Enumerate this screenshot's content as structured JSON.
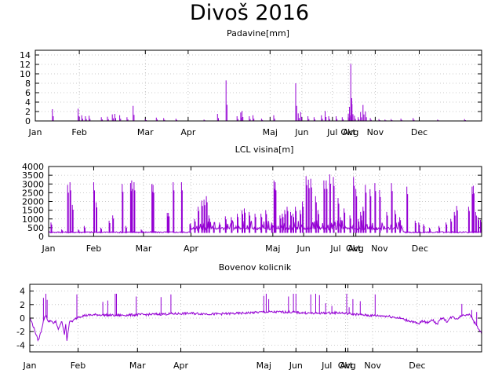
{
  "title": "Divoš 2016",
  "chart_data": [
    {
      "type": "line",
      "title": "Padavine[mm]",
      "ylim": [
        0,
        15
      ],
      "yticks": [
        0,
        2,
        4,
        6,
        8,
        10,
        12,
        14
      ],
      "xlim": [
        1,
        366
      ],
      "grid": true,
      "month_ticks": [
        {
          "label": "Jan",
          "day": 1
        },
        {
          "label": "Feb",
          "day": 37
        },
        {
          "label": "Mar",
          "day": 91
        },
        {
          "label": "Apr",
          "day": 126
        },
        {
          "label": "Maj",
          "day": 193
        },
        {
          "label": "Jun",
          "day": 219
        },
        {
          "label": "Jul",
          "day": 244
        },
        {
          "label": "Okt",
          "day": 257
        },
        {
          "label": "Avg",
          "day": 259
        },
        {
          "label": "Nov",
          "day": 279
        },
        {
          "label": "Dec",
          "day": 315
        }
      ],
      "peaks": [
        [
          15,
          2.5
        ],
        [
          36,
          2.6
        ],
        [
          39,
          1.2
        ],
        [
          42,
          1.0
        ],
        [
          45,
          1.1
        ],
        [
          55,
          0.8
        ],
        [
          60,
          0.9
        ],
        [
          64,
          1.4
        ],
        [
          66,
          1.5
        ],
        [
          70,
          1.2
        ],
        [
          76,
          0.8
        ],
        [
          81,
          3.2
        ],
        [
          91,
          0.4
        ],
        [
          100,
          0.7
        ],
        [
          106,
          0.6
        ],
        [
          116,
          0.5
        ],
        [
          139,
          0.3
        ],
        [
          150,
          1.5
        ],
        [
          157,
          8.6
        ],
        [
          166,
          1.0
        ],
        [
          169,
          1.8
        ],
        [
          170,
          2.1
        ],
        [
          176,
          1.0
        ],
        [
          179,
          1.2
        ],
        [
          186,
          0.5
        ],
        [
          196,
          1.2
        ],
        [
          214,
          8.0
        ],
        [
          216,
          1.6
        ],
        [
          218,
          1.9
        ],
        [
          224,
          1.0
        ],
        [
          229,
          0.8
        ],
        [
          235,
          1.2
        ],
        [
          238,
          2.1
        ],
        [
          241,
          1.0
        ],
        [
          247,
          1.0
        ],
        [
          252,
          0.8
        ],
        [
          257,
          1.5
        ],
        [
          258,
          3.0
        ],
        [
          259,
          12.1
        ],
        [
          260,
          3.6
        ],
        [
          262,
          1.1
        ],
        [
          265,
          0.8
        ],
        [
          267,
          1.9
        ],
        [
          269,
          3.4
        ],
        [
          271,
          2.0
        ],
        [
          275,
          0.6
        ],
        [
          282,
          0.4
        ],
        [
          287,
          0.3
        ],
        [
          292,
          0.4
        ],
        [
          300,
          0.5
        ],
        [
          310,
          0.6
        ],
        [
          330,
          0.3
        ],
        [
          352,
          0.4
        ]
      ]
    },
    {
      "type": "line",
      "title": "LCL visina[m]",
      "ylim": [
        0,
        4000
      ],
      "yticks": [
        0,
        500,
        1000,
        1500,
        2000,
        2500,
        3000,
        3500,
        4000
      ],
      "xlim": [
        1,
        366
      ],
      "grid": true,
      "baseline": 200,
      "month_ticks": [
        {
          "label": "Jan",
          "day": 1
        },
        {
          "label": "Feb",
          "day": 39
        },
        {
          "label": "Mar",
          "day": 81
        },
        {
          "label": "Apr",
          "day": 121
        },
        {
          "label": "Maj",
          "day": 190
        },
        {
          "label": "Jun",
          "day": 216
        },
        {
          "label": "Jul",
          "day": 243
        },
        {
          "label": "Okt",
          "day": 258
        },
        {
          "label": "Avg",
          "day": 260
        },
        {
          "label": "Nov",
          "day": 280
        },
        {
          "label": "Dec",
          "day": 314
        }
      ],
      "peaks": [
        [
          3,
          800
        ],
        [
          12,
          400
        ],
        [
          17,
          2950
        ],
        [
          19,
          3100
        ],
        [
          21,
          1800
        ],
        [
          26,
          400
        ],
        [
          31,
          600
        ],
        [
          39,
          3100
        ],
        [
          41,
          1950
        ],
        [
          45,
          500
        ],
        [
          52,
          900
        ],
        [
          55,
          1200
        ],
        [
          63,
          3000
        ],
        [
          66,
          600
        ],
        [
          70,
          3050
        ],
        [
          71,
          3200
        ],
        [
          73,
          3100
        ],
        [
          79,
          400
        ],
        [
          88,
          3000
        ],
        [
          89,
          2950
        ],
        [
          101,
          1350
        ],
        [
          102,
          1350
        ],
        [
          106,
          3100
        ],
        [
          113,
          3100
        ],
        [
          120,
          700
        ],
        [
          124,
          1000
        ],
        [
          127,
          1700
        ],
        [
          130,
          2050
        ],
        [
          132,
          2100
        ],
        [
          134,
          2300
        ],
        [
          136,
          1200
        ],
        [
          140,
          600
        ],
        [
          145,
          800
        ],
        [
          150,
          1150
        ],
        [
          155,
          1100
        ],
        [
          160,
          1300
        ],
        [
          164,
          1500
        ],
        [
          166,
          1600
        ],
        [
          170,
          1400
        ],
        [
          175,
          1300
        ],
        [
          180,
          1300
        ],
        [
          184,
          1500
        ],
        [
          189,
          800
        ],
        [
          191,
          3200
        ],
        [
          192,
          3100
        ],
        [
          196,
          1200
        ],
        [
          198,
          1300
        ],
        [
          200,
          1500
        ],
        [
          202,
          1700
        ],
        [
          205,
          1400
        ],
        [
          207,
          1300
        ],
        [
          209,
          1700
        ],
        [
          213,
          1500
        ],
        [
          215,
          2000
        ],
        [
          218,
          3450
        ],
        [
          220,
          3250
        ],
        [
          222,
          3300
        ],
        [
          226,
          2300
        ],
        [
          228,
          1500
        ],
        [
          233,
          3200
        ],
        [
          235,
          3200
        ],
        [
          238,
          3550
        ],
        [
          241,
          3400
        ],
        [
          245,
          2200
        ],
        [
          247,
          1100
        ],
        [
          250,
          1600
        ],
        [
          255,
          1200
        ],
        [
          258,
          3400
        ],
        [
          260,
          2700
        ],
        [
          262,
          1000
        ],
        [
          264,
          1400
        ],
        [
          266,
          1700
        ],
        [
          268,
          2950
        ],
        [
          272,
          2700
        ],
        [
          276,
          3050
        ],
        [
          280,
          2650
        ],
        [
          286,
          1400
        ],
        [
          290,
          3050
        ],
        [
          293,
          1500
        ],
        [
          297,
          1100
        ],
        [
          303,
          2850
        ],
        [
          310,
          900
        ],
        [
          313,
          800
        ],
        [
          317,
          700
        ],
        [
          322,
          500
        ],
        [
          330,
          600
        ],
        [
          336,
          800
        ],
        [
          340,
          1000
        ],
        [
          343,
          1400
        ],
        [
          345,
          1750
        ],
        [
          355,
          1700
        ],
        [
          358,
          2850
        ],
        [
          359,
          2900
        ],
        [
          361,
          1400
        ],
        [
          363,
          1100
        ],
        [
          365,
          950
        ]
      ]
    },
    {
      "type": "line",
      "title": "Bovenov kolicnik",
      "ylim": [
        -5,
        5
      ],
      "yticks": [
        -4,
        -2,
        0,
        2,
        4
      ],
      "xlim": [
        1,
        366
      ],
      "grid": true,
      "month_ticks": [
        {
          "label": "Jan",
          "day": 1
        },
        {
          "label": "Feb",
          "day": 40
        },
        {
          "label": "Mar",
          "day": 88
        },
        {
          "label": "Apr",
          "day": 123
        },
        {
          "label": "Maj",
          "day": 190
        },
        {
          "label": "Jun",
          "day": 216
        },
        {
          "label": "Jul",
          "day": 241
        },
        {
          "label": "Okt",
          "day": 256
        },
        {
          "label": "Avg",
          "day": 258
        },
        {
          "label": "Nov",
          "day": 278
        },
        {
          "label": "Dec",
          "day": 314
        }
      ],
      "profile": [
        [
          1,
          0.0
        ],
        [
          3,
          -0.8
        ],
        [
          5,
          -1.8
        ],
        [
          7,
          -3.0
        ],
        [
          8,
          -3.3
        ],
        [
          10,
          -2.0
        ],
        [
          12,
          -0.4
        ],
        [
          14,
          0.5
        ],
        [
          16,
          -0.6
        ],
        [
          18,
          -0.3
        ],
        [
          20,
          -0.9
        ],
        [
          22,
          -0.4
        ],
        [
          24,
          -1.8
        ],
        [
          25,
          -1.2
        ],
        [
          27,
          -0.5
        ],
        [
          29,
          -2.4
        ],
        [
          30,
          -1.0
        ],
        [
          31,
          -3.2
        ],
        [
          33,
          -0.6
        ],
        [
          36,
          -0.4
        ],
        [
          40,
          0.2
        ],
        [
          46,
          0.4
        ],
        [
          55,
          0.5
        ],
        [
          70,
          0.4
        ],
        [
          90,
          0.5
        ],
        [
          110,
          0.6
        ],
        [
          130,
          0.7
        ],
        [
          150,
          0.6
        ],
        [
          170,
          0.7
        ],
        [
          190,
          0.9
        ],
        [
          210,
          0.9
        ],
        [
          230,
          0.7
        ],
        [
          250,
          0.8
        ],
        [
          262,
          0.6
        ],
        [
          275,
          0.4
        ],
        [
          290,
          0.3
        ],
        [
          300,
          0.0
        ],
        [
          305,
          -0.3
        ],
        [
          310,
          -0.5
        ],
        [
          315,
          -0.9
        ],
        [
          318,
          -0.4
        ],
        [
          322,
          -0.7
        ],
        [
          326,
          -0.2
        ],
        [
          330,
          -0.9
        ],
        [
          334,
          0.1
        ],
        [
          338,
          -0.5
        ],
        [
          342,
          0.2
        ],
        [
          346,
          -0.1
        ],
        [
          350,
          0.4
        ],
        [
          355,
          0.6
        ],
        [
          358,
          0.2
        ],
        [
          360,
          -0.6
        ],
        [
          362,
          -1.1
        ],
        [
          364,
          -1.7
        ],
        [
          366,
          -2.3
        ]
      ],
      "peaks": [
        [
          12,
          3.0
        ],
        [
          14,
          3.6
        ],
        [
          15,
          2.7
        ],
        [
          39,
          3.5
        ],
        [
          60,
          2.4
        ],
        [
          64,
          2.6
        ],
        [
          70,
          3.6
        ],
        [
          71,
          3.6
        ],
        [
          87,
          3.2
        ],
        [
          107,
          3.1
        ],
        [
          115,
          3.5
        ],
        [
          190,
          3.3
        ],
        [
          192,
          3.6
        ],
        [
          194,
          2.8
        ],
        [
          210,
          3.2
        ],
        [
          214,
          3.6
        ],
        [
          216,
          3.6
        ],
        [
          228,
          3.5
        ],
        [
          232,
          3.6
        ],
        [
          235,
          3.4
        ],
        [
          240,
          2.2
        ],
        [
          245,
          1.8
        ],
        [
          257,
          3.6
        ],
        [
          259,
          1.6
        ],
        [
          262,
          2.8
        ],
        [
          268,
          2.5
        ],
        [
          280,
          3.5
        ],
        [
          350,
          2.1
        ],
        [
          358,
          1.2
        ],
        [
          362,
          0.9
        ]
      ]
    }
  ]
}
